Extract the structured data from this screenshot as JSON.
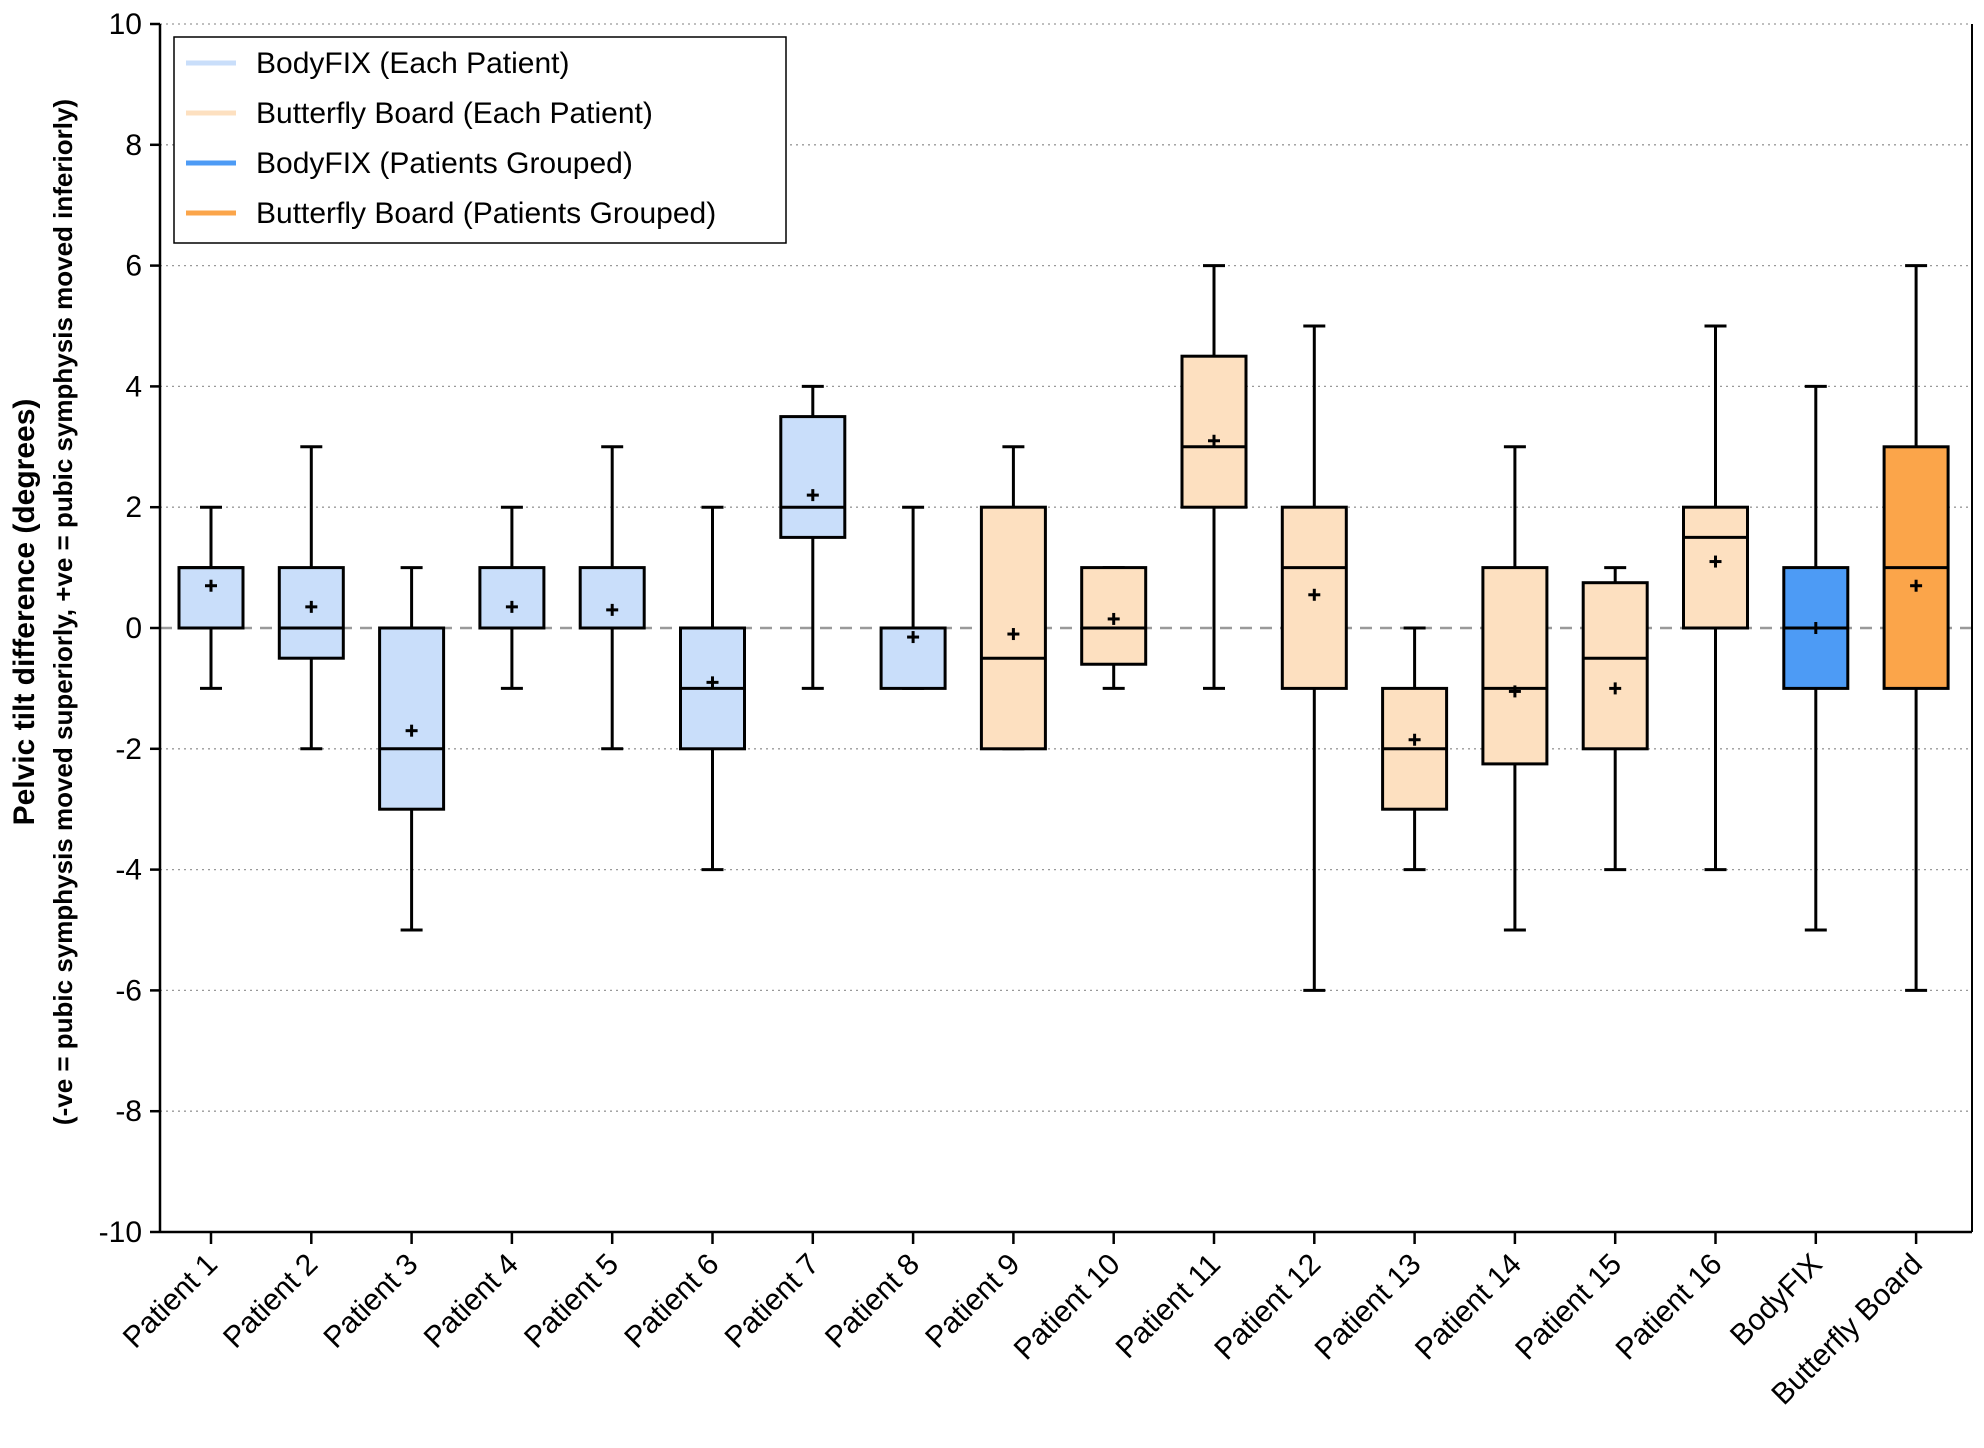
{
  "chart_data": {
    "type": "box",
    "title": "",
    "ylabel": "Pelvic tilt difference (degrees)",
    "ylabel_sub": "(-ve = pubic symphysis moved superiorly, +ve = pubic symphysis moved inferiorly)",
    "xlabel": "",
    "ylim": [
      -10,
      10
    ],
    "yticks": [
      -10,
      -8,
      -6,
      -4,
      -2,
      0,
      2,
      4,
      6,
      8,
      10
    ],
    "yticks_labels": [
      "-10",
      "-8",
      "-6",
      "-4",
      "-2",
      "0",
      "2",
      "4",
      "6",
      "8",
      "10"
    ],
    "grid": "horizontal dotted",
    "reference_line": 0,
    "legend_position": "top-left",
    "legend": [
      {
        "label": "BodyFIX (Each Patient)",
        "color": "#c9defa"
      },
      {
        "label": "Butterfly Board (Each Patient)",
        "color": "#fde0c0"
      },
      {
        "label": "BodyFIX (Patients Grouped)",
        "color": "#4d9bf5"
      },
      {
        "label": "Butterfly Board (Patients Grouped)",
        "color": "#fba54a"
      }
    ],
    "colors": {
      "bodyfix_each": "#c9defa",
      "butterfly_each": "#fde0c0",
      "bodyfix_grouped": "#4d9bf5",
      "butterfly_grouped": "#fba54a",
      "grid": "#999999",
      "zero_line": "#9a9a9a"
    },
    "categories": [
      "Patient 1",
      "Patient 2",
      "Patient 3",
      "Patient 4",
      "Patient 5",
      "Patient 6",
      "Patient 7",
      "Patient 8",
      "Patient 9",
      "Patient 10",
      "Patient 11",
      "Patient 12",
      "Patient 13",
      "Patient 14",
      "Patient 15",
      "Patient 16",
      "BodyFIX",
      "Butterfly Board"
    ],
    "boxes": [
      {
        "name": "Patient 1",
        "group": "bodyfix_each",
        "min": -1,
        "q1": 0,
        "median": 1,
        "q3": 1,
        "max": 2,
        "mean": 0.7
      },
      {
        "name": "Patient 2",
        "group": "bodyfix_each",
        "min": -2,
        "q1": -0.5,
        "median": 0,
        "q3": 1,
        "max": 3,
        "mean": 0.35
      },
      {
        "name": "Patient 3",
        "group": "bodyfix_each",
        "min": -5,
        "q1": -3,
        "median": -2,
        "q3": 0,
        "max": 1,
        "mean": -1.7
      },
      {
        "name": "Patient 4",
        "group": "bodyfix_each",
        "min": -1,
        "q1": 0,
        "median": 0,
        "q3": 1,
        "max": 2,
        "mean": 0.35
      },
      {
        "name": "Patient 5",
        "group": "bodyfix_each",
        "min": -2,
        "q1": 0,
        "median": 0,
        "q3": 1,
        "max": 3,
        "mean": 0.3
      },
      {
        "name": "Patient 6",
        "group": "bodyfix_each",
        "min": -4,
        "q1": -2,
        "median": -1,
        "q3": 0,
        "max": 2,
        "mean": -0.9
      },
      {
        "name": "Patient 7",
        "group": "bodyfix_each",
        "min": -1,
        "q1": 1.5,
        "median": 2,
        "q3": 3.5,
        "max": 4,
        "mean": 2.2
      },
      {
        "name": "Patient 8",
        "group": "bodyfix_each",
        "min": -1,
        "q1": -1,
        "median": 0,
        "q3": 0,
        "max": 2,
        "mean": -0.15
      },
      {
        "name": "Patient 9",
        "group": "butterfly_each",
        "min": -2,
        "q1": -2,
        "median": -0.5,
        "q3": 2,
        "max": 3,
        "mean": -0.1
      },
      {
        "name": "Patient 10",
        "group": "butterfly_each",
        "min": -1,
        "q1": -0.6,
        "median": 0,
        "q3": 1,
        "max": 1,
        "mean": 0.15
      },
      {
        "name": "Patient 11",
        "group": "butterfly_each",
        "min": -1,
        "q1": 2,
        "median": 3,
        "q3": 4.5,
        "max": 6,
        "mean": 3.1
      },
      {
        "name": "Patient 12",
        "group": "butterfly_each",
        "min": -6,
        "q1": -1,
        "median": 1,
        "q3": 2,
        "max": 5,
        "mean": 0.55
      },
      {
        "name": "Patient 13",
        "group": "butterfly_each",
        "min": -4,
        "q1": -3,
        "median": -2,
        "q3": -1,
        "max": 0,
        "mean": -1.85
      },
      {
        "name": "Patient 14",
        "group": "butterfly_each",
        "min": -5,
        "q1": -2.25,
        "median": -1,
        "q3": 1,
        "max": 3,
        "mean": -1.05
      },
      {
        "name": "Patient 15",
        "group": "butterfly_each",
        "min": -4,
        "q1": -2,
        "median": -0.5,
        "q3": 0.75,
        "max": 1,
        "mean": -1
      },
      {
        "name": "Patient 16",
        "group": "butterfly_each",
        "min": -4,
        "q1": 0,
        "median": 1.5,
        "q3": 2,
        "max": 5,
        "mean": 1.1
      },
      {
        "name": "BodyFIX",
        "group": "bodyfix_grouped",
        "min": -5,
        "q1": -1,
        "median": 0,
        "q3": 1,
        "max": 4,
        "mean": 0
      },
      {
        "name": "Butterfly Board",
        "group": "butterfly_grouped",
        "min": -6,
        "q1": -1,
        "median": 1,
        "q3": 3,
        "max": 6,
        "mean": 0.7
      }
    ]
  }
}
